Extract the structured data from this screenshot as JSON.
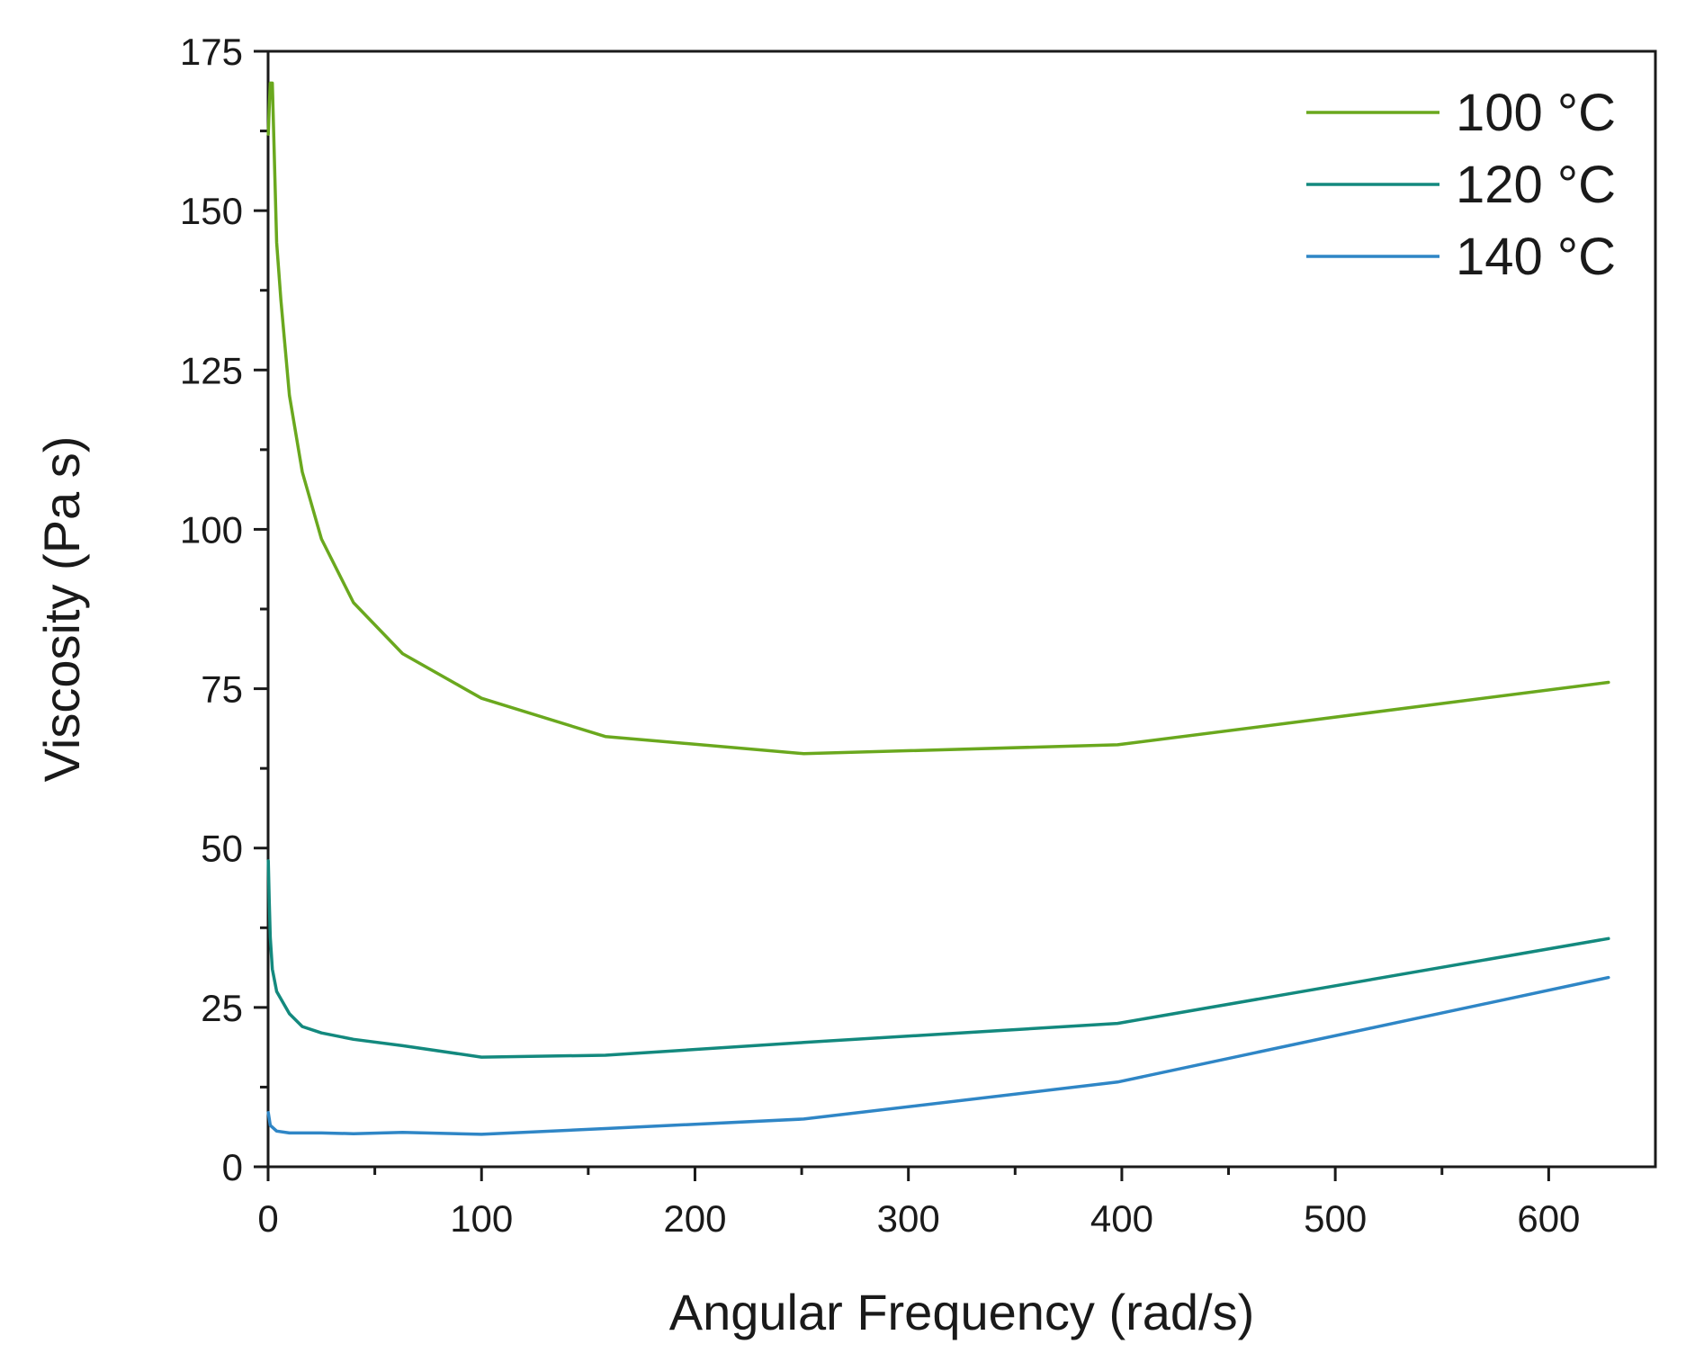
{
  "chart_data": {
    "type": "line",
    "title": "",
    "xlabel": "Angular Frequency (rad/s)",
    "ylabel": "Viscosity (Pa s)",
    "xlim": [
      0,
      650
    ],
    "ylim": [
      0,
      175
    ],
    "xticks": [
      0,
      100,
      200,
      300,
      400,
      500,
      600
    ],
    "yticks": [
      0,
      25,
      50,
      75,
      100,
      125,
      150,
      175
    ],
    "xtick_labels": [
      "0",
      "100",
      "200",
      "300",
      "400",
      "500",
      "600"
    ],
    "ytick_labels": [
      "0",
      "25",
      "50",
      "75",
      "100",
      "125",
      "150",
      "175"
    ],
    "grid": false,
    "legend_position": "top-right",
    "series": [
      {
        "name": "100 °C",
        "color": "#6aa81e",
        "points": [
          [
            0.1,
            162
          ],
          [
            0.5,
            166
          ],
          [
            1,
            170
          ],
          [
            2,
            170
          ],
          [
            4,
            145
          ],
          [
            6,
            136
          ],
          [
            10,
            121
          ],
          [
            16,
            109
          ],
          [
            25,
            98.5
          ],
          [
            40,
            88.5
          ],
          [
            63,
            80.5
          ],
          [
            100,
            73.5
          ],
          [
            158,
            67.5
          ],
          [
            251,
            64.8
          ],
          [
            398,
            66.2
          ],
          [
            628,
            76
          ]
        ]
      },
      {
        "name": "120 °C",
        "color": "#13897e",
        "points": [
          [
            0.1,
            48
          ],
          [
            0.5,
            42
          ],
          [
            1,
            36
          ],
          [
            2,
            31
          ],
          [
            4,
            27.5
          ],
          [
            10,
            24
          ],
          [
            16,
            22
          ],
          [
            25,
            21
          ],
          [
            40,
            20
          ],
          [
            63,
            19
          ],
          [
            100,
            17.2
          ],
          [
            158,
            17.5
          ],
          [
            251,
            19.5
          ],
          [
            398,
            22.5
          ],
          [
            628,
            35.8
          ]
        ]
      },
      {
        "name": "140 °C",
        "color": "#2f86c6",
        "points": [
          [
            0.1,
            8.5
          ],
          [
            1,
            6.5
          ],
          [
            4,
            5.6
          ],
          [
            10,
            5.3
          ],
          [
            25,
            5.3
          ],
          [
            40,
            5.2
          ],
          [
            63,
            5.4
          ],
          [
            100,
            5.1
          ],
          [
            158,
            6.0
          ],
          [
            251,
            7.5
          ],
          [
            398,
            13.3
          ],
          [
            628,
            29.7
          ]
        ]
      }
    ]
  }
}
